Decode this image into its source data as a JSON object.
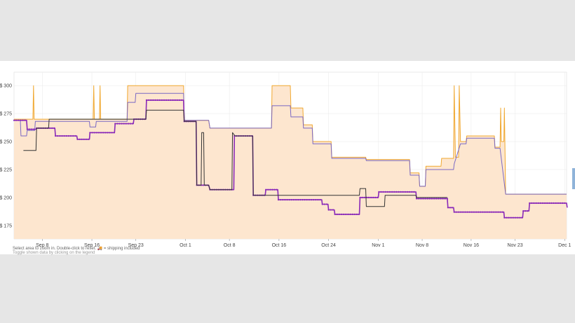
{
  "chart_data": {
    "type": "line",
    "title": "",
    "xlabel": "",
    "ylabel": "",
    "ylim": [
      163,
      312
    ],
    "y_ticks": [
      175,
      200,
      225,
      250,
      275,
      300
    ],
    "y_tick_prefix": "$ ",
    "x_domain": [
      0,
      88
    ],
    "x_ticks": [
      {
        "day": 4.5,
        "label": "Sep 8"
      },
      {
        "day": 12.4,
        "label": "Sep 16"
      },
      {
        "day": 19.4,
        "label": "Sep 23"
      },
      {
        "day": 27.3,
        "label": "Oct 1"
      },
      {
        "day": 34.3,
        "label": "Oct 8"
      },
      {
        "day": 42.2,
        "label": "Oct 16"
      },
      {
        "day": 50.1,
        "label": "Oct 24"
      },
      {
        "day": 58.0,
        "label": "Nov 1"
      },
      {
        "day": 65.0,
        "label": "Nov 8"
      },
      {
        "day": 72.8,
        "label": "Nov 16"
      },
      {
        "day": 79.8,
        "label": "Nov 23"
      },
      {
        "day": 87.7,
        "label": "Dec 1"
      }
    ],
    "grid": true,
    "series": [
      {
        "color": "#f0a830",
        "fill": "#fde6cf",
        "style": "step-area",
        "points": [
          [
            0,
            270
          ],
          [
            3,
            270
          ],
          [
            3.1,
            300
          ],
          [
            3.2,
            270
          ],
          [
            12.6,
            270
          ],
          [
            12.7,
            300
          ],
          [
            12.8,
            270
          ],
          [
            13.6,
            270
          ],
          [
            13.7,
            300
          ],
          [
            13.8,
            270
          ],
          [
            18,
            270
          ],
          [
            18.1,
            300
          ],
          [
            19.2,
            300
          ],
          [
            19.3,
            300
          ],
          [
            24,
            300
          ],
          [
            27,
            300
          ],
          [
            27.1,
            269
          ],
          [
            31,
            269
          ],
          [
            31.2,
            262
          ],
          [
            41,
            262
          ],
          [
            41.1,
            300
          ],
          [
            44,
            300
          ],
          [
            44.1,
            280
          ],
          [
            46,
            280
          ],
          [
            46.1,
            265
          ],
          [
            47.5,
            265
          ],
          [
            47.6,
            250
          ],
          [
            50.5,
            250
          ],
          [
            50.6,
            236
          ],
          [
            56,
            236
          ],
          [
            56.1,
            234
          ],
          [
            63,
            234
          ],
          [
            63.1,
            222
          ],
          [
            64.5,
            222
          ],
          [
            64.6,
            210
          ],
          [
            65.5,
            210
          ],
          [
            65.6,
            228
          ],
          [
            68,
            228
          ],
          [
            68.1,
            235
          ],
          [
            70,
            235
          ],
          [
            70.1,
            300
          ],
          [
            70.3,
            236
          ],
          [
            70.8,
            236
          ],
          [
            70.9,
            300
          ],
          [
            71.1,
            250
          ],
          [
            72,
            250
          ],
          [
            72.1,
            255
          ],
          [
            76.5,
            255
          ],
          [
            76.6,
            245
          ],
          [
            77.4,
            245
          ],
          [
            77.5,
            280
          ],
          [
            77.6,
            250
          ],
          [
            78,
            250
          ],
          [
            78.1,
            280
          ],
          [
            78.3,
            203
          ],
          [
            88,
            203
          ]
        ]
      },
      {
        "color": "#7a68c4",
        "style": "step",
        "points": [
          [
            0,
            269
          ],
          [
            1,
            269
          ],
          [
            1.1,
            255
          ],
          [
            2,
            255
          ],
          [
            2.1,
            260
          ],
          [
            3.3,
            260
          ],
          [
            3.4,
            268
          ],
          [
            12,
            268
          ],
          [
            12.1,
            263
          ],
          [
            13,
            263
          ],
          [
            13.1,
            268
          ],
          [
            18,
            268
          ],
          [
            18.1,
            285
          ],
          [
            19.3,
            285
          ],
          [
            19.4,
            293
          ],
          [
            24,
            293
          ],
          [
            27,
            293
          ],
          [
            27.1,
            269
          ],
          [
            31,
            269
          ],
          [
            31.2,
            262
          ],
          [
            41,
            262
          ],
          [
            41.1,
            282
          ],
          [
            44,
            282
          ],
          [
            44.1,
            272
          ],
          [
            46,
            272
          ],
          [
            46.1,
            262
          ],
          [
            47.5,
            262
          ],
          [
            47.6,
            248
          ],
          [
            50.5,
            248
          ],
          [
            50.6,
            235
          ],
          [
            56,
            235
          ],
          [
            56.1,
            233
          ],
          [
            63,
            233
          ],
          [
            63.1,
            220
          ],
          [
            64.5,
            220
          ],
          [
            64.6,
            210
          ],
          [
            65.5,
            210
          ],
          [
            65.6,
            225
          ],
          [
            70,
            225
          ],
          [
            70.1,
            230
          ],
          [
            71.1,
            248
          ],
          [
            72,
            248
          ],
          [
            72.1,
            253
          ],
          [
            76.5,
            253
          ],
          [
            76.6,
            244
          ],
          [
            77.4,
            244
          ],
          [
            78.3,
            203
          ],
          [
            88,
            203
          ]
        ]
      },
      {
        "color": "#8a2ab8",
        "style": "step-markers",
        "points": [
          [
            0,
            269
          ],
          [
            2,
            269
          ],
          [
            2.1,
            261
          ],
          [
            3.5,
            261
          ],
          [
            3.6,
            262
          ],
          [
            6.5,
            262
          ],
          [
            6.6,
            255
          ],
          [
            10,
            255
          ],
          [
            10.1,
            252
          ],
          [
            12,
            252
          ],
          [
            12.1,
            258
          ],
          [
            16,
            258
          ],
          [
            16.1,
            266
          ],
          [
            19,
            266
          ],
          [
            19.1,
            270
          ],
          [
            21,
            270
          ],
          [
            21.1,
            287
          ],
          [
            27,
            287
          ],
          [
            27.1,
            268
          ],
          [
            29,
            268
          ],
          [
            29.1,
            211
          ],
          [
            31,
            211
          ],
          [
            31.2,
            207
          ],
          [
            35,
            207
          ],
          [
            35.1,
            255
          ],
          [
            38,
            255
          ],
          [
            38.1,
            202
          ],
          [
            40,
            202
          ],
          [
            40.1,
            207
          ],
          [
            42,
            207
          ],
          [
            42.1,
            198
          ],
          [
            49,
            198
          ],
          [
            49.1,
            194
          ],
          [
            50,
            194
          ],
          [
            50.1,
            189
          ],
          [
            51,
            189
          ],
          [
            51.1,
            185
          ],
          [
            55,
            185
          ],
          [
            55.1,
            200
          ],
          [
            58,
            200
          ],
          [
            58.1,
            205
          ],
          [
            64,
            205
          ],
          [
            64.1,
            199
          ],
          [
            69,
            199
          ],
          [
            69.1,
            191
          ],
          [
            70,
            191
          ],
          [
            70.1,
            187
          ],
          [
            78,
            187
          ],
          [
            78.1,
            182
          ],
          [
            81,
            182
          ],
          [
            81.1,
            188
          ],
          [
            82,
            188
          ],
          [
            82.1,
            195
          ],
          [
            88,
            195
          ],
          [
            88.1,
            191
          ]
        ]
      },
      {
        "color": "#333333",
        "style": "step",
        "points": [
          [
            1.5,
            242
          ],
          [
            3.5,
            242
          ],
          [
            3.6,
            262
          ],
          [
            5.5,
            262
          ],
          [
            5.6,
            270
          ],
          [
            21,
            270
          ],
          [
            21.1,
            278
          ],
          [
            27,
            278
          ],
          [
            27.1,
            268
          ],
          [
            29,
            268
          ],
          [
            29.1,
            211
          ],
          [
            29.8,
            211
          ],
          [
            29.9,
            258
          ],
          [
            30.2,
            258
          ],
          [
            30.3,
            211
          ],
          [
            31,
            211
          ],
          [
            31.2,
            207
          ],
          [
            34.7,
            207
          ],
          [
            34.8,
            258
          ],
          [
            35.2,
            255
          ],
          [
            38,
            255
          ],
          [
            38.1,
            202
          ],
          [
            55,
            202
          ],
          [
            55.1,
            208
          ],
          [
            56,
            208
          ],
          [
            56.1,
            192
          ],
          [
            59,
            192
          ],
          [
            59.1,
            202
          ],
          [
            64,
            202
          ],
          [
            64.1,
            200
          ],
          [
            69,
            200
          ]
        ]
      }
    ]
  },
  "notes": {
    "line1": "Select area to zoom in. Double-click to reset.   🚚 = shipping included",
    "line2": "Toggle shown data by clicking on the legend"
  }
}
